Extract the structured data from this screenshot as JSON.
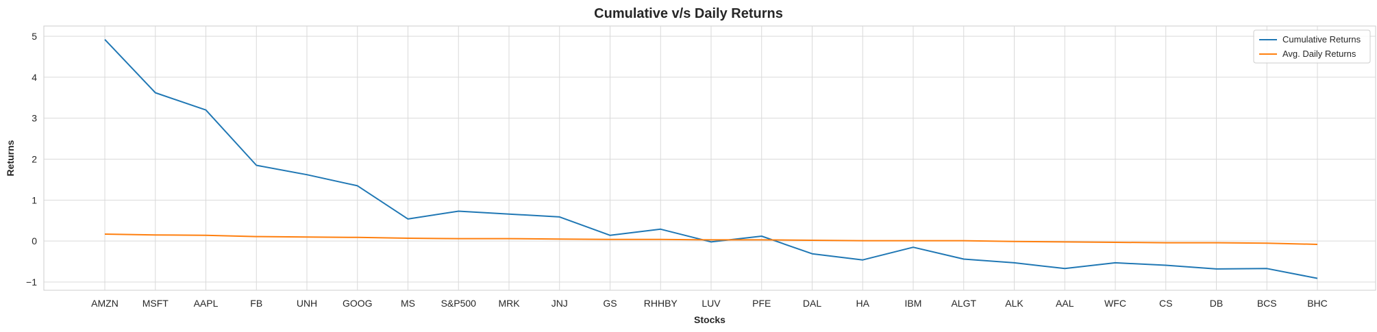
{
  "chart_data": {
    "type": "line",
    "title": "Cumulative v/s Daily Returns",
    "xlabel": "Stocks",
    "ylabel": "Returns",
    "categories": [
      "AMZN",
      "MSFT",
      "AAPL",
      "FB",
      "UNH",
      "GOOG",
      "MS",
      "S&P500",
      "MRK",
      "JNJ",
      "GS",
      "RHHBY",
      "LUV",
      "PFE",
      "DAL",
      "HA",
      "IBM",
      "ALGT",
      "ALK",
      "AAL",
      "WFC",
      "CS",
      "DB",
      "BCS",
      "BHC"
    ],
    "ylim": [
      -1.2,
      5.25
    ],
    "yticks": [
      -1,
      0,
      1,
      2,
      3,
      4,
      5
    ],
    "grid": true,
    "legend_position": "top-right",
    "series": [
      {
        "name": "Cumulative Returns",
        "color": "#1f77b4",
        "values": [
          4.92,
          3.62,
          3.2,
          1.85,
          1.62,
          1.35,
          0.54,
          0.73,
          0.66,
          0.59,
          0.14,
          0.29,
          -0.02,
          0.12,
          -0.31,
          -0.46,
          -0.15,
          -0.44,
          -0.53,
          -0.67,
          -0.53,
          -0.59,
          -0.68,
          -0.67,
          -0.91
        ]
      },
      {
        "name": "Avg. Daily Returns",
        "color": "#ff7f0e",
        "values": [
          0.17,
          0.15,
          0.14,
          0.11,
          0.1,
          0.09,
          0.07,
          0.06,
          0.06,
          0.05,
          0.04,
          0.04,
          0.03,
          0.03,
          0.02,
          0.01,
          0.01,
          0.01,
          -0.01,
          -0.02,
          -0.03,
          -0.04,
          -0.04,
          -0.05,
          -0.08
        ]
      }
    ]
  }
}
